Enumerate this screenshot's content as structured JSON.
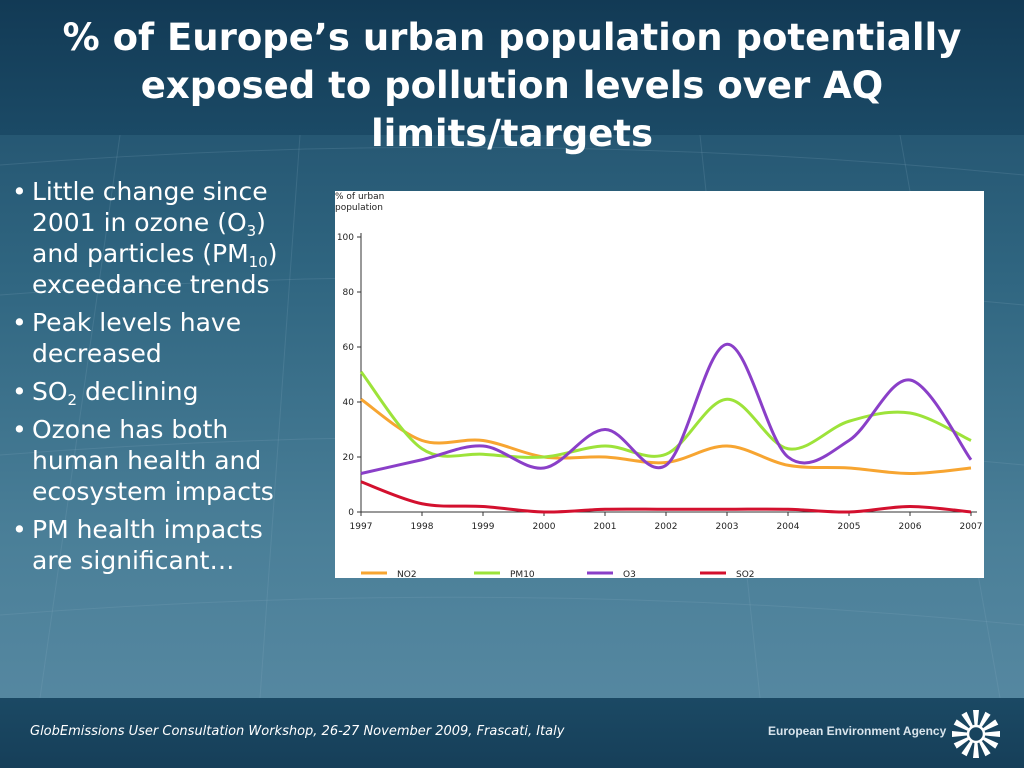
{
  "slide": {
    "title_line1": "% of Europe’s urban population potentially",
    "title_line2": "exposed to pollution levels over AQ limits/targets",
    "bullets": [
      {
        "pre": "Little change since 2001 in ozone (O",
        "sub1": "3",
        "mid": ") and particles (PM",
        "sub2": "10",
        "post": ") exceedance trends"
      },
      {
        "pre": "Peak levels have decreased"
      },
      {
        "pre": "SO",
        "sub1": "2",
        "mid": " declining"
      },
      {
        "pre": "Ozone has both human health and ecosystem impacts"
      },
      {
        "pre": "PM health impacts are significant…"
      }
    ],
    "footer_text": "GlobEmissions User Consultation Workshop, 26-27 November 2009, Frascati, Italy",
    "org_name": "European Environment Agency"
  },
  "chart_data": {
    "type": "line",
    "ylabel_line1": "% of urban",
    "ylabel_line2": "population",
    "x": [
      "1997",
      "1998",
      "1999",
      "2000",
      "2001",
      "2002",
      "2003",
      "2004",
      "2005",
      "2006",
      "2007"
    ],
    "ylim": [
      0,
      100
    ],
    "yticks": [
      0,
      20,
      40,
      60,
      80,
      100
    ],
    "legend_position": "bottom",
    "series": [
      {
        "name": "NO2",
        "color": "#f7a531",
        "values": [
          41,
          26,
          26,
          20,
          20,
          18,
          24,
          17,
          16,
          14,
          16
        ]
      },
      {
        "name": "PM10",
        "color": "#9de33a",
        "values": [
          51,
          23,
          21,
          20,
          24,
          21,
          41,
          23,
          33,
          36,
          26
        ]
      },
      {
        "name": "O3",
        "color": "#8a3fc8",
        "values": [
          14,
          19,
          24,
          16,
          30,
          17,
          61,
          20,
          26,
          48,
          19
        ]
      },
      {
        "name": "SO2",
        "color": "#d3102e",
        "values": [
          11,
          3,
          2,
          0,
          1,
          1,
          1,
          1,
          0,
          2,
          0
        ]
      }
    ]
  }
}
